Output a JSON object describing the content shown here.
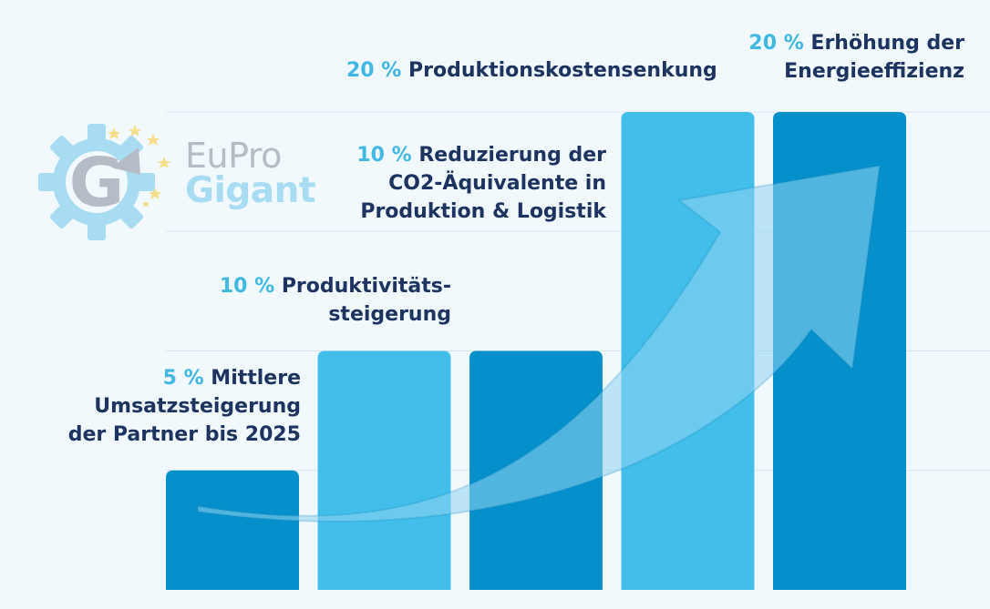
{
  "chart_data": {
    "type": "bar",
    "title": "",
    "xlabel": "",
    "ylabel": "",
    "ylim": [
      0,
      20
    ],
    "grid": true,
    "legend": "none",
    "trend_arrow": true,
    "categories": [
      "Mittlere Umsatzsteigerung der Partner bis 2025",
      "Produktivitätssteigerung",
      "Reduzierung der CO2-Äquivalente in Produktion & Logistik",
      "Produktionskostensenkung",
      "Erhöhung der Energieeffizienz"
    ],
    "values": [
      5,
      10,
      10,
      20,
      20
    ],
    "bar_colors": [
      "#0690cb",
      "#41bfea",
      "#0690cb",
      "#41bfea",
      "#0690cb"
    ],
    "labels": [
      {
        "pct": "5 %",
        "lines": [
          "Mittlere",
          "Umsatzsteigerung",
          "der Partner bis 2025"
        ]
      },
      {
        "pct": "10 %",
        "lines": [
          "Produktivitäts-",
          "steigerung"
        ]
      },
      {
        "pct": "10 %",
        "lines": [
          "Reduzierung der",
          "CO2-Äquivalente in",
          "Produktion & Logistik"
        ]
      },
      {
        "pct": "20 %",
        "lines": [
          "Produktionskostensenkung"
        ]
      },
      {
        "pct": "20 %",
        "lines": [
          "Erhöhung der",
          "Energieeffizienz"
        ]
      }
    ]
  },
  "logo": {
    "letter": "G",
    "line1": "EuPro",
    "line2": "Gigant",
    "colors": {
      "gear": "#a8dcf2",
      "g": "#b5bcc6",
      "stars": "#f6dd88",
      "text_top": "#b5bcc6",
      "text_bottom": "#a8dcf2"
    }
  },
  "colors": {
    "background": "#f2f9fc",
    "grid": "#d6e6ef",
    "label_dark": "#1d3461",
    "label_accent": "#41b8e4",
    "arrow": "#8fd3f0"
  }
}
